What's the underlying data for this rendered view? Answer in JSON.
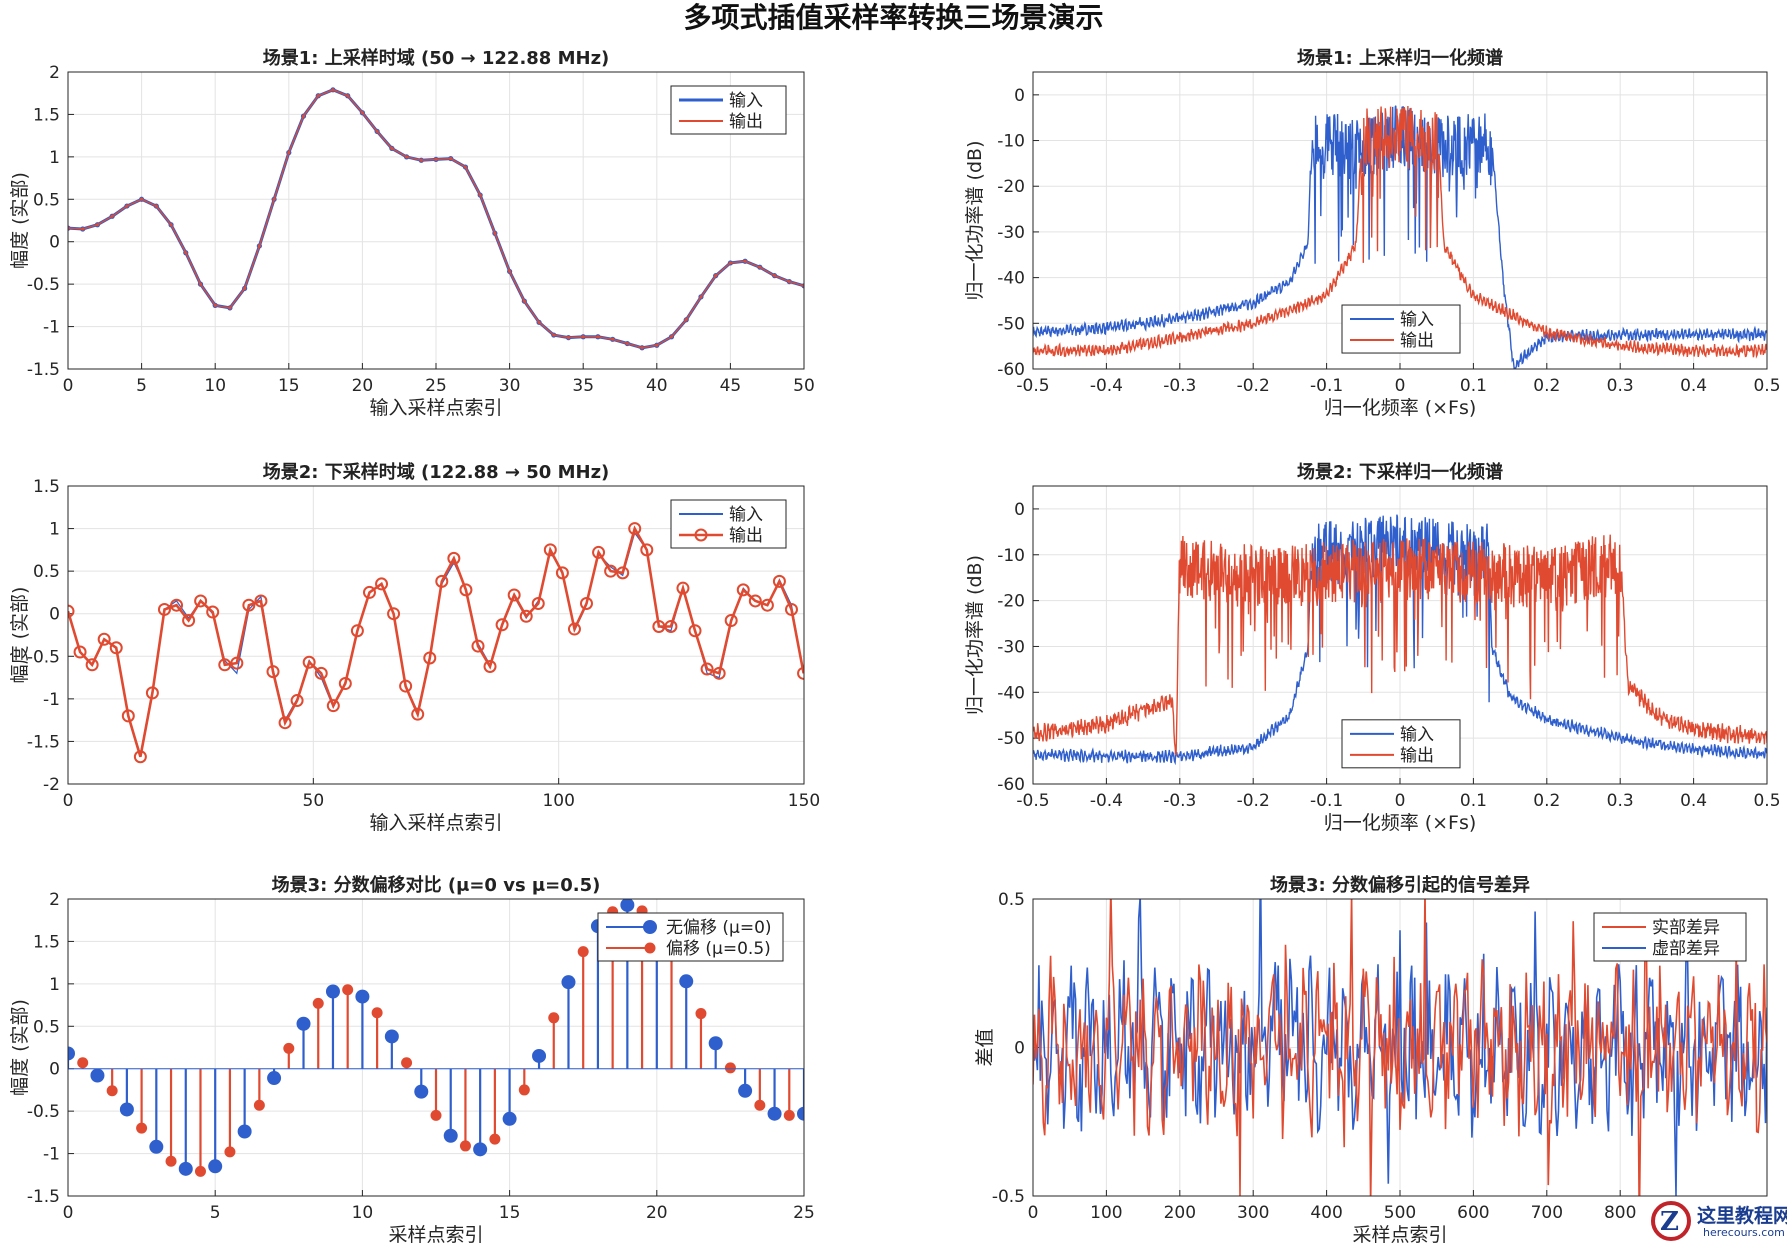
{
  "page_title": "多项式插值采样率转换三场景演示",
  "chart_data": [
    {
      "id": "p1",
      "type": "line",
      "title": "场景1: 上采样时域 (50 → 122.88 MHz)",
      "xlabel": "输入采样点索引",
      "ylabel": "幅度 (实部)",
      "xlim": [
        0,
        50
      ],
      "ylim": [
        -1.5,
        2
      ],
      "xticks": [
        0,
        5,
        10,
        15,
        20,
        25,
        30,
        35,
        40,
        45,
        50
      ],
      "yticks": [
        -1.5,
        -1,
        -0.5,
        0,
        0.5,
        1,
        1.5,
        2
      ],
      "legend": {
        "position": "top-right",
        "labels": [
          "输入",
          "输出"
        ]
      },
      "series": [
        {
          "name": "输入",
          "color": "#2f5fcc",
          "marker": "point",
          "x": [
            0,
            1,
            2,
            3,
            4,
            5,
            6,
            7,
            8,
            9,
            10,
            11,
            12,
            13,
            14,
            15,
            16,
            17,
            18,
            19,
            20,
            21,
            22,
            23,
            24,
            25,
            26,
            27,
            28,
            29,
            30,
            31,
            32,
            33,
            34,
            35,
            36,
            37,
            38,
            39,
            40,
            41,
            42,
            43,
            44,
            45,
            46,
            47,
            48,
            49,
            50
          ],
          "y": [
            0.16,
            0.15,
            0.2,
            0.3,
            0.42,
            0.5,
            0.42,
            0.2,
            -0.13,
            -0.5,
            -0.75,
            -0.78,
            -0.55,
            -0.05,
            0.5,
            1.05,
            1.48,
            1.72,
            1.79,
            1.72,
            1.52,
            1.3,
            1.1,
            1.0,
            0.96,
            0.97,
            0.98,
            0.88,
            0.55,
            0.1,
            -0.35,
            -0.7,
            -0.95,
            -1.1,
            -1.13,
            -1.12,
            -1.12,
            -1.15,
            -1.2,
            -1.25,
            -1.22,
            -1.12,
            -0.92,
            -0.65,
            -0.4,
            -0.25,
            -0.23,
            -0.3,
            -0.4,
            -0.47,
            -0.52
          ]
        },
        {
          "name": "输出",
          "color": "#e04a30",
          "marker": "dot",
          "x": [
            0,
            1,
            2,
            3,
            4,
            5,
            6,
            7,
            8,
            9,
            10,
            11,
            12,
            13,
            14,
            15,
            16,
            17,
            18,
            19,
            20,
            21,
            22,
            23,
            24,
            25,
            26,
            27,
            28,
            29,
            30,
            31,
            32,
            33,
            34,
            35,
            36,
            37,
            38,
            39,
            40,
            41,
            42,
            43,
            44,
            45,
            46,
            47,
            48,
            49,
            50
          ],
          "y": [
            0.16,
            0.15,
            0.2,
            0.3,
            0.42,
            0.5,
            0.42,
            0.2,
            -0.13,
            -0.5,
            -0.75,
            -0.78,
            -0.55,
            -0.05,
            0.5,
            1.05,
            1.48,
            1.72,
            1.79,
            1.72,
            1.52,
            1.3,
            1.1,
            1.0,
            0.96,
            0.97,
            0.98,
            0.88,
            0.55,
            0.1,
            -0.35,
            -0.7,
            -0.95,
            -1.1,
            -1.13,
            -1.12,
            -1.12,
            -1.15,
            -1.2,
            -1.25,
            -1.22,
            -1.12,
            -0.92,
            -0.65,
            -0.4,
            -0.25,
            -0.23,
            -0.3,
            -0.4,
            -0.47,
            -0.52
          ]
        }
      ]
    },
    {
      "id": "p2",
      "type": "line",
      "title": "场景1: 上采样归一化频谱",
      "xlabel": "归一化频率 (×Fs)",
      "ylabel": "归一化功率谱 (dB)",
      "xlim": [
        -0.5,
        0.5
      ],
      "ylim": [
        -60,
        5
      ],
      "xticks": [
        -0.5,
        -0.4,
        -0.3,
        -0.2,
        -0.1,
        0,
        0.1,
        0.2,
        0.3,
        0.4,
        0.5
      ],
      "yticks": [
        -60,
        -50,
        -40,
        -30,
        -20,
        -10,
        0
      ],
      "legend": {
        "position": "bottom-center",
        "labels": [
          "输入",
          "输出"
        ]
      },
      "series": [
        {
          "name": "输入",
          "color": "#2f5fcc",
          "x": [
            -0.5,
            -0.4,
            -0.3,
            -0.2,
            -0.15,
            -0.125,
            -0.12,
            -0.05,
            0,
            0.05,
            0.12,
            0.125,
            0.14,
            0.155,
            0.17,
            0.2,
            0.3,
            0.4,
            0.5
          ],
          "y": [
            -52,
            -51,
            -49,
            -45.5,
            -41,
            -32,
            -3,
            -5,
            -2,
            -5,
            -3,
            -10,
            -40,
            -60,
            -57,
            -53,
            -52.5,
            -52.5,
            -52.5
          ]
        },
        {
          "name": "输出",
          "color": "#e04a30",
          "x": [
            -0.5,
            -0.4,
            -0.3,
            -0.2,
            -0.1,
            -0.06,
            -0.05,
            0,
            0.05,
            0.06,
            0.1,
            0.2,
            0.3,
            0.4,
            0.5
          ],
          "y": [
            -56,
            -56,
            -53,
            -50,
            -44,
            -33,
            -3,
            -2,
            -3,
            -33,
            -44,
            -52,
            -55,
            -56,
            -56
          ]
        }
      ]
    },
    {
      "id": "p3",
      "type": "line",
      "title": "场景2: 下采样时域 (122.88 → 50 MHz)",
      "xlabel": "输入采样点索引",
      "ylabel": "幅度 (实部)",
      "xlim": [
        0,
        150
      ],
      "ylim": [
        -2,
        1.5
      ],
      "xticks": [
        0,
        50,
        100,
        150
      ],
      "yticks": [
        -2,
        -1.5,
        -1,
        -0.5,
        0,
        0.5,
        1,
        1.5
      ],
      "legend": {
        "position": "top-right",
        "labels": [
          "输入",
          "输出"
        ]
      },
      "series": [
        {
          "name": "输入",
          "color": "#2f5fcc",
          "x": [
            0,
            2.46,
            4.92,
            7.37,
            9.83,
            12.29,
            14.75,
            17.2,
            19.66,
            22.12,
            24.58,
            27.03,
            29.49,
            31.95,
            34.41,
            36.86,
            39.32,
            41.78,
            44.24,
            46.69,
            49.15,
            51.61,
            54.07,
            56.52,
            58.98,
            61.44,
            63.9,
            66.35,
            68.81,
            71.27,
            73.73,
            76.18,
            78.64,
            81.1,
            83.56,
            86.01,
            88.47,
            90.93,
            93.39,
            95.84,
            98.3,
            100.76,
            103.22,
            105.67,
            108.13,
            110.59,
            113.05,
            115.5,
            117.96,
            120.42,
            122.88,
            125.33,
            127.79,
            130.25,
            132.71,
            135.16,
            137.62,
            140.08,
            142.54,
            144.99,
            147.45,
            149.91
          ],
          "y": [
            0.03,
            -0.45,
            -0.6,
            -0.3,
            -0.4,
            -1.2,
            -1.65,
            -0.9,
            0.05,
            0.15,
            -0.05,
            0.15,
            0.0,
            -0.55,
            -0.7,
            0.05,
            0.2,
            -0.65,
            -1.25,
            -1.0,
            -0.55,
            -0.75,
            -1.1,
            -0.8,
            -0.2,
            0.25,
            0.35,
            0.0,
            -0.85,
            -1.15,
            -0.5,
            0.35,
            0.6,
            0.3,
            -0.35,
            -0.6,
            -0.15,
            0.2,
            -0.05,
            0.15,
            0.72,
            0.5,
            -0.2,
            0.1,
            0.7,
            0.55,
            0.45,
            0.95,
            0.75,
            -0.15,
            -0.2,
            0.3,
            -0.2,
            -0.7,
            -0.75,
            -0.1,
            0.3,
            0.15,
            0.1,
            0.4,
            0.1,
            -0.7
          ]
        },
        {
          "name": "输出",
          "color": "#e04a30",
          "marker": "circle",
          "x": [
            0,
            2.46,
            4.92,
            7.37,
            9.83,
            12.29,
            14.75,
            17.2,
            19.66,
            22.12,
            24.58,
            27.03,
            29.49,
            31.95,
            34.41,
            36.86,
            39.32,
            41.78,
            44.24,
            46.69,
            49.15,
            51.61,
            54.07,
            56.52,
            58.98,
            61.44,
            63.9,
            66.35,
            68.81,
            71.27,
            73.73,
            76.18,
            78.64,
            81.1,
            83.56,
            86.01,
            88.47,
            90.93,
            93.39,
            95.84,
            98.3,
            100.76,
            103.22,
            105.67,
            108.13,
            110.59,
            113.05,
            115.5,
            117.96,
            120.42,
            122.88,
            125.33,
            127.79,
            130.25,
            132.71,
            135.16,
            137.62,
            140.08,
            142.54,
            144.99,
            147.45,
            149.91
          ],
          "y": [
            0.03,
            -0.45,
            -0.6,
            -0.3,
            -0.4,
            -1.2,
            -1.68,
            -0.93,
            0.05,
            0.1,
            -0.08,
            0.15,
            0.02,
            -0.6,
            -0.58,
            0.1,
            0.15,
            -0.68,
            -1.28,
            -1.02,
            -0.57,
            -0.7,
            -1.08,
            -0.82,
            -0.2,
            0.25,
            0.35,
            0.0,
            -0.85,
            -1.18,
            -0.52,
            0.38,
            0.65,
            0.28,
            -0.38,
            -0.62,
            -0.13,
            0.22,
            -0.03,
            0.12,
            0.75,
            0.48,
            -0.18,
            0.12,
            0.72,
            0.5,
            0.48,
            1.0,
            0.75,
            -0.15,
            -0.15,
            0.3,
            -0.2,
            -0.65,
            -0.7,
            -0.08,
            0.28,
            0.15,
            0.1,
            0.38,
            0.05,
            -0.7
          ]
        }
      ]
    },
    {
      "id": "p4",
      "type": "line",
      "title": "场景2: 下采样归一化频谱",
      "xlabel": "归一化频率 (×Fs)",
      "ylabel": "归一化功率谱 (dB)",
      "xlim": [
        -0.5,
        0.5
      ],
      "ylim": [
        -60,
        5
      ],
      "xticks": [
        -0.5,
        -0.4,
        -0.3,
        -0.2,
        -0.1,
        0,
        0.1,
        0.2,
        0.3,
        0.4,
        0.5
      ],
      "yticks": [
        -60,
        -50,
        -40,
        -30,
        -20,
        -10,
        0
      ],
      "legend": {
        "position": "bottom-center",
        "labels": [
          "输入",
          "输出"
        ]
      },
      "series": [
        {
          "name": "输入",
          "color": "#2f5fcc",
          "x": [
            -0.5,
            -0.4,
            -0.3,
            -0.2,
            -0.15,
            -0.125,
            -0.12,
            -0.05,
            0,
            0.05,
            0.12,
            0.125,
            0.15,
            0.2,
            0.3,
            0.4,
            0.5
          ],
          "y": [
            -53.5,
            -54,
            -54,
            -52,
            -45,
            -30,
            -3,
            -2,
            -1,
            -2,
            -3,
            -30,
            -41,
            -46,
            -50,
            -52.5,
            -53.5
          ]
        },
        {
          "name": "输出",
          "color": "#e04a30",
          "x": [
            -0.5,
            -0.4,
            -0.35,
            -0.31,
            -0.305,
            -0.3,
            -0.2,
            -0.1,
            0,
            0.1,
            0.2,
            0.29,
            0.3,
            0.31,
            0.35,
            0.4,
            0.5
          ],
          "y": [
            -49,
            -47,
            -44,
            -42,
            -55,
            -5,
            -8,
            -7,
            -6,
            -7,
            -8,
            -5,
            -8,
            -38,
            -45,
            -48,
            -50
          ]
        }
      ]
    },
    {
      "id": "p5",
      "type": "stem",
      "title": "场景3: 分数偏移对比 (μ=0 vs μ=0.5)",
      "xlabel": "采样点索引",
      "ylabel": "幅度 (实部)",
      "xlim": [
        0,
        25
      ],
      "ylim": [
        -1.5,
        2
      ],
      "xticks": [
        0,
        5,
        10,
        15,
        20,
        25
      ],
      "yticks": [
        -1.5,
        -1,
        -0.5,
        0,
        0.5,
        1,
        1.5,
        2
      ],
      "legend": {
        "position": "top-right",
        "labels": [
          "无偏移 (μ=0)",
          "偏移 (μ=0.5)"
        ]
      },
      "series": [
        {
          "name": "无偏移 (μ=0)",
          "color": "#2f5fcc",
          "x": [
            0,
            1,
            2,
            3,
            4,
            5,
            6,
            7,
            8,
            9,
            10,
            11,
            12,
            13,
            14,
            15,
            16,
            17,
            18,
            19,
            20,
            21,
            22,
            23,
            24,
            25
          ],
          "y": [
            0.18,
            -0.08,
            -0.48,
            -0.92,
            -1.18,
            -1.15,
            -0.74,
            -0.11,
            0.53,
            0.91,
            0.85,
            0.38,
            -0.27,
            -0.79,
            -0.95,
            -0.59,
            0.15,
            1.02,
            1.68,
            1.93,
            1.7,
            1.03,
            0.3,
            -0.26,
            -0.53,
            -0.53
          ]
        },
        {
          "name": "偏移 (μ=0.5)",
          "color": "#e04a30",
          "x": [
            0.5,
            1.5,
            2.5,
            3.5,
            4.5,
            5.5,
            6.5,
            7.5,
            8.5,
            9.5,
            10.5,
            11.5,
            12.5,
            13.5,
            14.5,
            15.5,
            16.5,
            17.5,
            18.5,
            19.5,
            20.5,
            21.5,
            22.5,
            23.5,
            24.5
          ],
          "y": [
            0.07,
            -0.26,
            -0.7,
            -1.09,
            -1.21,
            -0.98,
            -0.43,
            0.24,
            0.77,
            0.93,
            0.66,
            0.07,
            -0.55,
            -0.91,
            -0.83,
            -0.25,
            0.6,
            1.38,
            1.85,
            1.86,
            1.4,
            0.65,
            0.01,
            -0.43,
            -0.55
          ]
        }
      ]
    },
    {
      "id": "p6",
      "type": "line",
      "title": "场景3: 分数偏移引起的信号差异",
      "xlabel": "采样点索引",
      "ylabel": "差值",
      "xlim": [
        0,
        1000
      ],
      "ylim": [
        -0.5,
        0.5
      ],
      "xticks": [
        0,
        100,
        200,
        300,
        400,
        500,
        600,
        700,
        800
      ],
      "yticks": [
        -0.5,
        0,
        0.5
      ],
      "legend": {
        "position": "top-right",
        "labels": [
          "实部差异",
          "虚部差异"
        ]
      },
      "series": [
        {
          "name": "实部差异",
          "color": "#e04a30"
        },
        {
          "name": "虚部差异",
          "color": "#2f5fcc"
        }
      ]
    }
  ],
  "watermark": {
    "title": "这里教程网",
    "url": "herecours.com",
    "logo_letter": "Z"
  }
}
